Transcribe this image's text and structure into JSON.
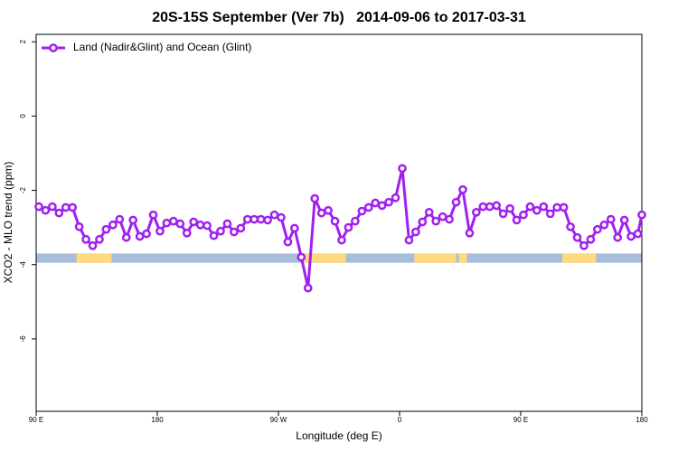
{
  "chart_data": {
    "type": "line",
    "title": "20S-15S September (Ver 7b)   2014-09-06 to 2017-03-31",
    "x_label": "Longitude (deg E)",
    "y_label": "XCO2 - MLO trend (ppm)",
    "xlim": [
      90,
      540
    ],
    "ylim": [
      -7.95,
      2.2
    ],
    "xticks": [
      {
        "value": 90,
        "label": "90 E"
      },
      180,
      {
        "value": 270,
        "label": "90 W"
      },
      {
        "value": 360,
        "label": "0"
      },
      {
        "value": 450,
        "label": "90 E"
      },
      {
        "value": 540,
        "label": "180"
      }
    ],
    "yticks": [
      2,
      0,
      -2,
      -4,
      -6
    ],
    "legend": "top-left",
    "x": [
      92,
      97,
      102,
      107,
      112,
      117,
      122,
      127,
      132,
      137,
      142,
      147,
      152,
      157,
      162,
      167,
      172,
      177,
      182,
      187,
      192,
      197,
      202,
      207,
      212,
      217,
      222,
      227,
      232,
      237,
      242,
      247,
      252,
      257,
      262,
      267,
      272,
      277,
      282,
      287,
      292,
      297,
      302,
      307,
      312,
      317,
      322,
      327,
      332,
      337,
      342,
      347,
      352,
      357,
      362,
      367,
      372,
      377,
      382,
      387,
      392,
      397,
      402,
      407,
      412,
      417,
      422,
      427,
      432,
      437,
      442,
      447,
      452,
      457,
      462,
      467,
      472,
      477,
      482,
      487,
      492,
      497,
      502,
      507,
      512,
      517,
      522,
      527,
      532,
      537,
      540
    ],
    "series": [
      {
        "name": "Land (Nadir&Glint) and Ocean (Glint)",
        "color": "#a020f0",
        "values": [
          -2.44,
          -2.54,
          -2.44,
          -2.61,
          -2.46,
          -2.46,
          -2.98,
          -3.32,
          -3.49,
          -3.32,
          -3.05,
          -2.93,
          -2.78,
          -3.27,
          -2.8,
          -3.24,
          -3.17,
          -2.66,
          -3.1,
          -2.88,
          -2.83,
          -2.9,
          -3.15,
          -2.85,
          -2.93,
          -2.95,
          -3.22,
          -3.1,
          -2.9,
          -3.12,
          -3.02,
          -2.78,
          -2.78,
          -2.78,
          -2.8,
          -2.66,
          -2.73,
          -3.39,
          -3.02,
          -3.8,
          -4.63,
          -2.22,
          -2.61,
          -2.54,
          -2.83,
          -3.34,
          -3.0,
          -2.83,
          -2.56,
          -2.46,
          -2.34,
          -2.41,
          -2.32,
          -2.2,
          -1.41,
          -3.34,
          -3.12,
          -2.85,
          -2.59,
          -2.83,
          -2.71,
          -2.78,
          -2.32,
          -1.98,
          -3.15,
          -2.59,
          -2.44,
          -2.44,
          -2.41,
          -2.63,
          -2.49,
          -2.8,
          -2.66,
          -2.44,
          -2.54,
          -2.44,
          -2.63,
          -2.46,
          -2.46,
          -2.98,
          -3.27,
          -3.49,
          -3.32,
          -3.05,
          -2.93,
          -2.78,
          -3.27,
          -2.8,
          -3.24,
          -3.17,
          -2.66
        ]
      }
    ],
    "surface_band": {
      "ylim": [
        -3.95,
        -3.7
      ],
      "ocean_color": "#a6bddb",
      "land_color": "#ffd97f",
      "land": [
        [
          120,
          146
        ],
        [
          287,
          320
        ],
        [
          371,
          402
        ],
        [
          404,
          410
        ],
        [
          481,
          506
        ]
      ]
    }
  }
}
